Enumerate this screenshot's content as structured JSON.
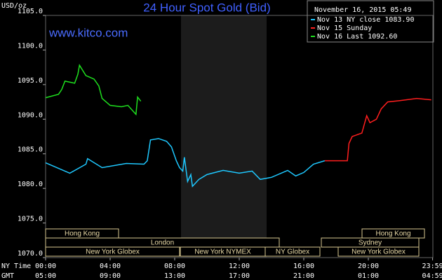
{
  "chart_data": {
    "type": "line",
    "title": "24 Hour Spot Gold (Bid)",
    "site": "www.kitco.com",
    "y_label": "USD/oz",
    "timestamp": "November 16, 2015 05:49",
    "x_row_labels": [
      "NY Time",
      "GMT"
    ],
    "xlim": [
      0,
      24
    ],
    "xticks": [
      {
        "value": 0,
        "label": "00:00"
      },
      {
        "value": 4,
        "label": "04:00"
      },
      {
        "value": 8,
        "label": "08:00"
      },
      {
        "value": 12,
        "label": "12:00"
      },
      {
        "value": 16,
        "label": "16:00"
      },
      {
        "value": 20,
        "label": "20:00"
      },
      {
        "value": 23.983,
        "label": "23:59"
      }
    ],
    "gmt_labels": [
      "05:00",
      "09:00",
      "13:00",
      "17:00",
      "21:00",
      "01:00",
      "04:59"
    ],
    "ylim": [
      1070,
      1105
    ],
    "yticks": [
      {
        "value": 1070,
        "label": "1070.0"
      },
      {
        "value": 1075,
        "label": "1075.0"
      },
      {
        "value": 1080,
        "label": "1080.0"
      },
      {
        "value": 1085,
        "label": "1085.0"
      },
      {
        "value": 1090,
        "label": "1090.0"
      },
      {
        "value": 1095,
        "label": "1095.0"
      },
      {
        "value": 1100,
        "label": "1100.0"
      },
      {
        "value": 1105,
        "label": "1105.0"
      }
    ],
    "sessions": [
      "Hong Kong",
      "London",
      "New York Globex",
      "New York NYMEX",
      "NY Globex",
      "Hong Kong",
      "Sydney",
      "New York Globex"
    ],
    "series": [
      {
        "name": "Nov 13 NY close 1083.90",
        "color": "#1ec8ff",
        "x": [
          0,
          1.5,
          2.5,
          2.6,
          3.5,
          5,
          6.1,
          6.3,
          6.5,
          7,
          7.5,
          7.8,
          8.1,
          8.3,
          8.5,
          8.6,
          8.8,
          9.0,
          9.1,
          9.5,
          10,
          11,
          12,
          12.8,
          13.3,
          14,
          15,
          15.5,
          16,
          16.6,
          17.3
        ],
        "values": [
          1083.7,
          1082.2,
          1083.5,
          1084.3,
          1083,
          1083.6,
          1083.5,
          1084,
          1087,
          1087.2,
          1086.8,
          1086,
          1084,
          1083,
          1082.5,
          1084.5,
          1081,
          1082,
          1080.3,
          1081.3,
          1082,
          1082.6,
          1082.2,
          1082.5,
          1081.3,
          1081.6,
          1082.6,
          1081.8,
          1082.3,
          1083.5,
          1084
        ]
      },
      {
        "name": "Nov 15 Sunday",
        "color": "#ff1e1e",
        "x": [
          17.3,
          18.7,
          18.8,
          19,
          19.6,
          19.9,
          20.1,
          20.5,
          20.8,
          21.2,
          22,
          23,
          23.9
        ],
        "values": [
          1084,
          1084,
          1086.5,
          1087.5,
          1088,
          1090.5,
          1089.5,
          1090,
          1091.5,
          1092.5,
          1092.7,
          1093,
          1092.8
        ]
      },
      {
        "name": "Nov 16 Last 1092.60",
        "color": "#1ee01e",
        "x": [
          0,
          0.8,
          1,
          1.2,
          1.8,
          2.0,
          2.1,
          2.5,
          3.0,
          3.3,
          3.5,
          4,
          4.7,
          5.1,
          5.6,
          5.7,
          5.9
        ],
        "values": [
          1093.1,
          1093.6,
          1094.3,
          1095.5,
          1095.2,
          1096.5,
          1097.8,
          1096.3,
          1095.8,
          1094.8,
          1093,
          1092,
          1091.8,
          1092,
          1090.7,
          1093.2,
          1092.6
        ]
      }
    ]
  }
}
